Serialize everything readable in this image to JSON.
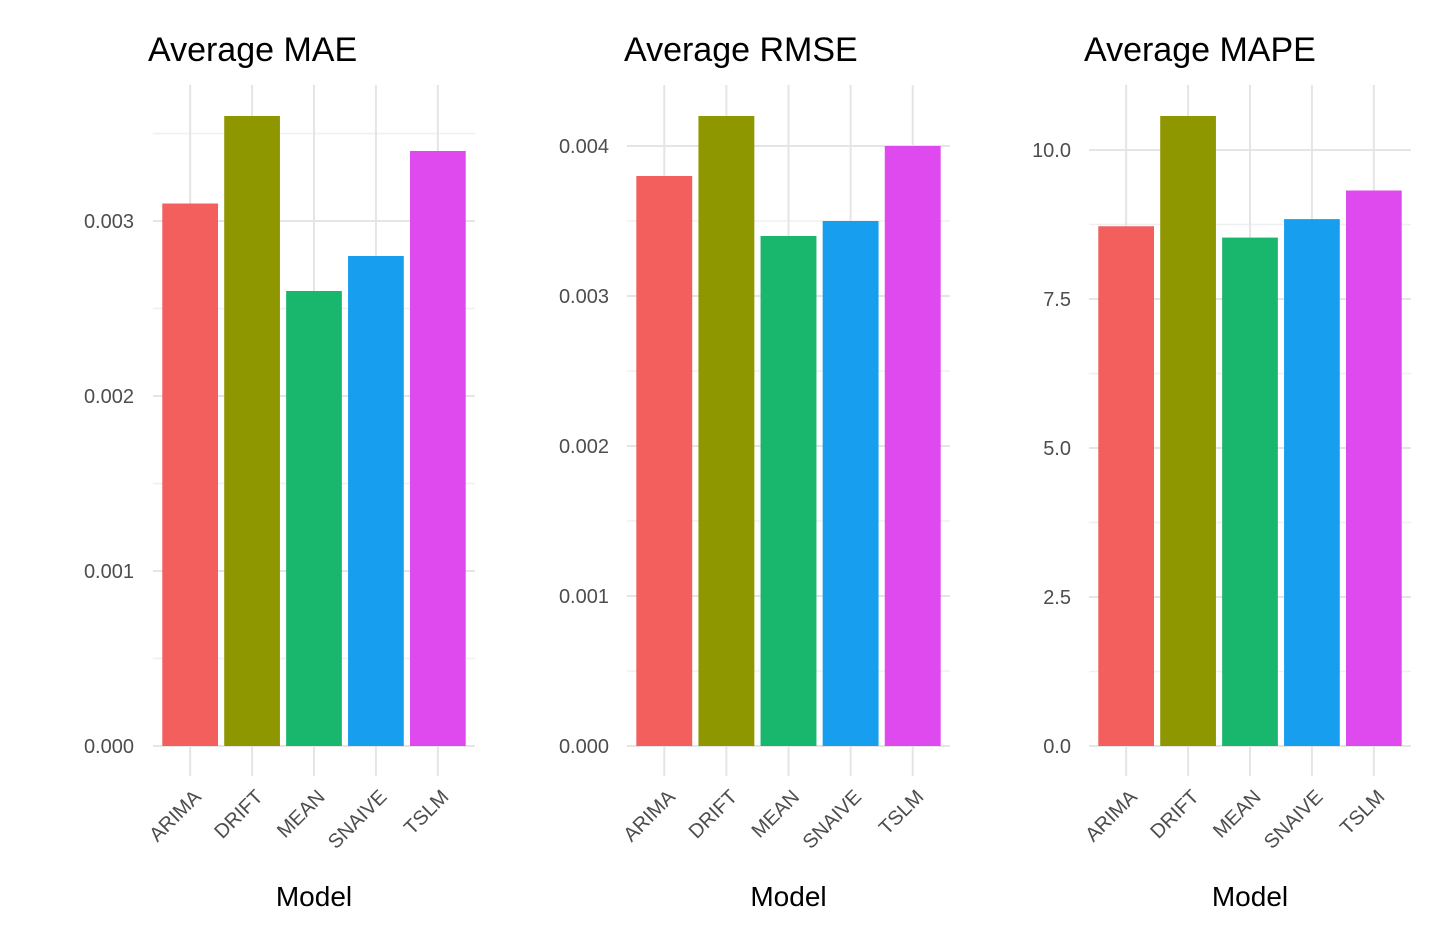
{
  "chart_data": [
    {
      "type": "bar",
      "title": "Average MAE",
      "xlabel": "Model",
      "ylabel": "",
      "categories": [
        "ARIMA",
        "DRIFT",
        "MEAN",
        "SNAIVE",
        "TSLM"
      ],
      "values": [
        0.0031,
        0.0036,
        0.0026,
        0.0028,
        0.0034
      ],
      "colors": [
        "#F25F5C",
        "#8E9600",
        "#19B66E",
        "#179EEF",
        "#DF4AEE"
      ],
      "ylim": [
        0,
        0.0036
      ],
      "yticks": [
        0,
        0.001,
        0.002,
        0.003
      ],
      "ytick_labels": [
        "0.000",
        "0.001",
        "0.002",
        "0.003"
      ],
      "grid": true,
      "legend": "none"
    },
    {
      "type": "bar",
      "title": "Average RMSE",
      "xlabel": "Model",
      "ylabel": "",
      "categories": [
        "ARIMA",
        "DRIFT",
        "MEAN",
        "SNAIVE",
        "TSLM"
      ],
      "values": [
        0.0038,
        0.0042,
        0.0034,
        0.0035,
        0.004
      ],
      "colors": [
        "#F25F5C",
        "#8E9600",
        "#19B66E",
        "#179EEF",
        "#DF4AEE"
      ],
      "ylim": [
        0,
        0.0042
      ],
      "yticks": [
        0,
        0.001,
        0.002,
        0.003,
        0.004
      ],
      "ytick_labels": [
        "0.000",
        "0.001",
        "0.002",
        "0.003",
        "0.004"
      ],
      "grid": true,
      "legend": "none"
    },
    {
      "type": "bar",
      "title": "Average MAPE",
      "xlabel": "Model",
      "ylabel": "",
      "categories": [
        "ARIMA",
        "DRIFT",
        "MEAN",
        "SNAIVE",
        "TSLM"
      ],
      "values": [
        8.72,
        10.57,
        8.53,
        8.84,
        9.32
      ],
      "colors": [
        "#F25F5C",
        "#8E9600",
        "#19B66E",
        "#179EEF",
        "#DF4AEE"
      ],
      "ylim": [
        0,
        10.57
      ],
      "yticks": [
        0,
        2.5,
        5.0,
        7.5,
        10.0
      ],
      "ytick_labels": [
        "0.0",
        "2.5",
        "5.0",
        "7.5",
        "10.0"
      ],
      "grid": true,
      "legend": "none"
    }
  ]
}
